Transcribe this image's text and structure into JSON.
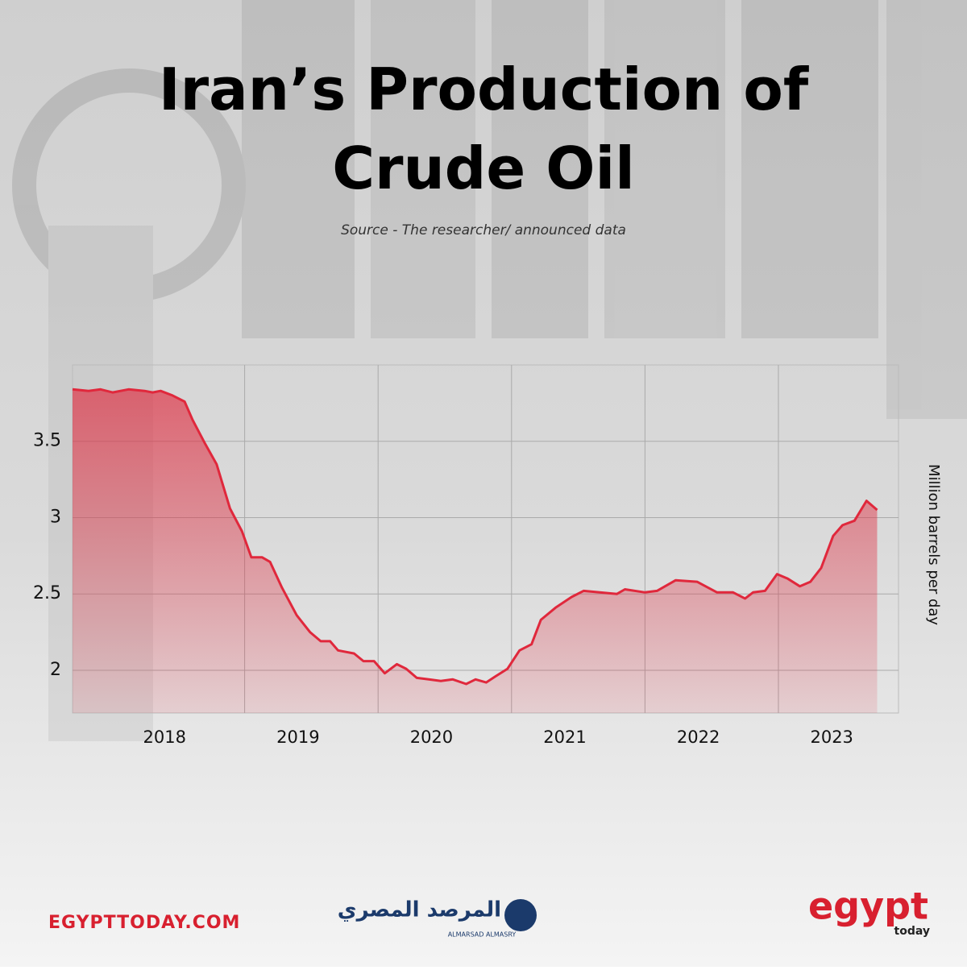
{
  "chart_data": {
    "type": "area",
    "title": "Iran’s Production of Crude Oil",
    "subtitle": "Source -  The researcher/ announced data",
    "y_label": "Million barrels per day",
    "color": "#e0283c",
    "grid": true,
    "xlim": [
      2017.71,
      2023.9
    ],
    "xticks": [
      2018,
      2019,
      2020,
      2021,
      2022,
      2023
    ],
    "ylim": [
      1.72,
      4.0
    ],
    "yticks": [
      2,
      2.5,
      3,
      3.5
    ],
    "x": [
      2017.71,
      2017.83,
      2017.92,
      2018.01,
      2018.13,
      2018.25,
      2018.31,
      2018.37,
      2018.46,
      2018.55,
      2018.61,
      2018.7,
      2018.79,
      2018.89,
      2018.98,
      2019.05,
      2019.13,
      2019.19,
      2019.28,
      2019.39,
      2019.49,
      2019.57,
      2019.64,
      2019.7,
      2019.82,
      2019.89,
      2019.97,
      2020.05,
      2020.14,
      2020.21,
      2020.29,
      2020.38,
      2020.47,
      2020.56,
      2020.66,
      2020.73,
      2020.81,
      2020.88,
      2020.97,
      2021.06,
      2021.15,
      2021.22,
      2021.33,
      2021.45,
      2021.54,
      2021.66,
      2021.79,
      2021.85,
      2022.0,
      2022.09,
      2022.23,
      2022.39,
      2022.54,
      2022.66,
      2022.75,
      2022.81,
      2022.9,
      2022.99,
      2023.07,
      2023.16,
      2023.24,
      2023.32,
      2023.41,
      2023.48,
      2023.57,
      2023.66,
      2023.74
    ],
    "values": [
      3.84,
      3.83,
      3.84,
      3.82,
      3.84,
      3.83,
      3.82,
      3.83,
      3.8,
      3.76,
      3.64,
      3.49,
      3.35,
      3.06,
      2.91,
      2.74,
      2.74,
      2.71,
      2.54,
      2.36,
      2.25,
      2.19,
      2.19,
      2.13,
      2.11,
      2.06,
      2.06,
      1.98,
      2.04,
      2.01,
      1.95,
      1.94,
      1.93,
      1.94,
      1.91,
      1.94,
      1.92,
      1.96,
      2.01,
      2.13,
      2.17,
      2.33,
      2.41,
      2.48,
      2.52,
      2.51,
      2.5,
      2.53,
      2.51,
      2.52,
      2.59,
      2.58,
      2.51,
      2.51,
      2.47,
      2.51,
      2.52,
      2.63,
      2.6,
      2.55,
      2.58,
      2.67,
      2.88,
      2.95,
      2.98,
      3.11,
      3.05
    ]
  },
  "footer": {
    "site": "EGYPTTODAY.COM",
    "partner": "المرصد المصري",
    "partner_en": "ALMARSAD ALMASRY",
    "brand": "egypt",
    "brand_sub": "today"
  }
}
